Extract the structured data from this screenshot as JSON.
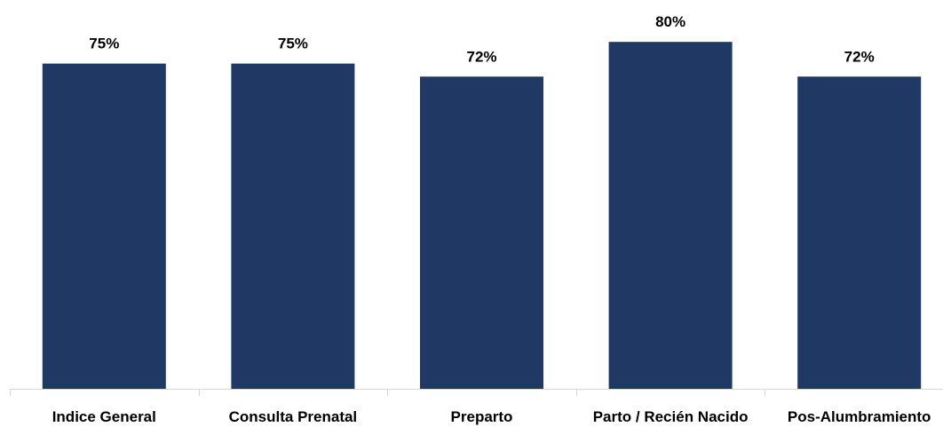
{
  "chart_data": {
    "type": "bar",
    "categories": [
      "Indice General",
      "Consulta Prenatal",
      "Preparto",
      "Parto / Recién Nacido",
      "Pos-Alumbramiento"
    ],
    "values": [
      75,
      75,
      72,
      80,
      72
    ],
    "value_labels": [
      "75%",
      "75%",
      "72%",
      "80%",
      "72%"
    ],
    "unit": "%",
    "bar_color": "#203864",
    "axis_color": "#d9d9d9",
    "title": "",
    "xlabel": "",
    "ylabel": "",
    "grid": false,
    "legend": "none"
  }
}
